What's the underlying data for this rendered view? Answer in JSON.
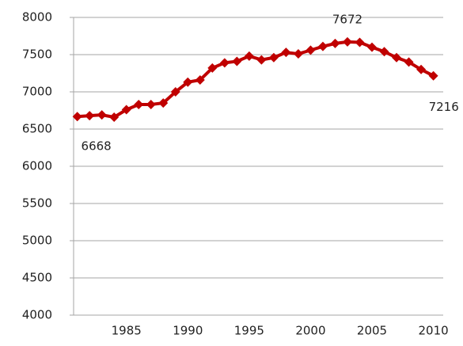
{
  "chart_data": {
    "type": "line",
    "x": [
      1981,
      1982,
      1983,
      1984,
      1985,
      1986,
      1987,
      1988,
      1989,
      1990,
      1991,
      1992,
      1993,
      1994,
      1995,
      1996,
      1997,
      1998,
      1999,
      2000,
      2001,
      2002,
      2003,
      2004,
      2005,
      2006,
      2007,
      2008,
      2009,
      2010
    ],
    "series": [
      {
        "name": null,
        "color": "#c00000",
        "values": [
          6668,
          6680,
          6690,
          6660,
          6760,
          6830,
          6830,
          6850,
          7000,
          7130,
          7160,
          7320,
          7390,
          7410,
          7480,
          7430,
          7460,
          7530,
          7510,
          7560,
          7610,
          7650,
          7672,
          7665,
          7600,
          7540,
          7460,
          7400,
          7300,
          7216
        ],
        "value_labels": [
          "6668",
          null,
          null,
          null,
          null,
          null,
          null,
          null,
          null,
          null,
          null,
          null,
          null,
          null,
          null,
          null,
          null,
          null,
          null,
          null,
          null,
          null,
          "7672",
          null,
          null,
          null,
          null,
          null,
          null,
          "7216"
        ]
      }
    ],
    "xlim": [
      1980.7,
      2010.8
    ],
    "xticks": [
      1985,
      1990,
      1995,
      2000,
      2005,
      2010
    ],
    "ylim": [
      4000,
      8000
    ],
    "yticks": [
      4000,
      4500,
      5000,
      5500,
      6000,
      6500,
      7000,
      7500,
      8000
    ],
    "grid": true
  }
}
